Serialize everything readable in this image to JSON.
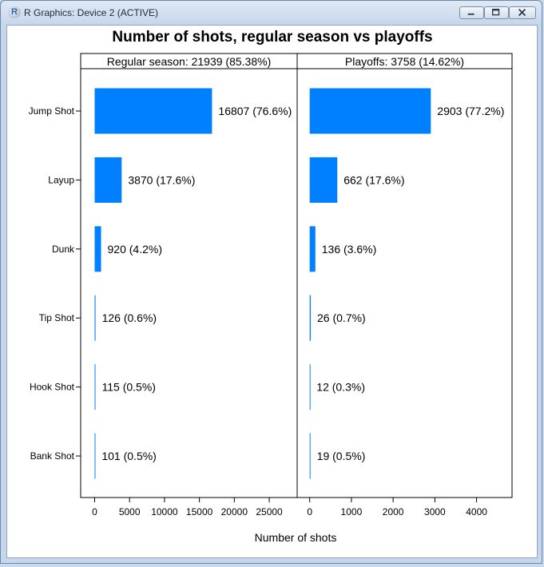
{
  "window": {
    "title": "R Graphics: Device 2 (ACTIVE)",
    "app_icon": "R",
    "controls": [
      "minimize-icon",
      "maximize-icon",
      "close-icon"
    ]
  },
  "colors": {
    "bar": "#0080ff",
    "panel_border": "#000000",
    "background": "#ffffff"
  },
  "chart_data": {
    "type": "bar",
    "orientation": "horizontal",
    "title": "Number of shots, regular season vs playoffs",
    "xlabel": "Number of shots",
    "ylabel": "",
    "categories": [
      "Jump Shot",
      "Layup",
      "Dunk",
      "Tip Shot",
      "Hook Shot",
      "Bank Shot"
    ],
    "panels": [
      {
        "strip": "Regular season: 21939 (85.38%)",
        "values": [
          16807,
          3870,
          920,
          126,
          115,
          101
        ],
        "labels": [
          "16807 (76.6%)",
          "3870 (17.6%)",
          "920 (4.2%)",
          "126 (0.6%)",
          "115 (0.5%)",
          "101 (0.5%)"
        ],
        "xlim": [
          -2000,
          29000
        ],
        "ticks": [
          0,
          5000,
          10000,
          15000,
          20000,
          25000
        ],
        "tick_labels": [
          "0",
          "5000",
          "10000",
          "15000",
          "20000",
          "25000"
        ]
      },
      {
        "strip": "Playoffs: 3758 (14.62%)",
        "values": [
          2903,
          662,
          136,
          26,
          12,
          19
        ],
        "labels": [
          "2903 (77.2%)",
          "662 (17.6%)",
          "136 (3.6%)",
          "26 (0.7%)",
          "12 (0.3%)",
          "19 (0.5%)"
        ],
        "xlim": [
          -300,
          4850
        ],
        "ticks": [
          0,
          1000,
          2000,
          3000,
          4000
        ],
        "tick_labels": [
          "0",
          "1000",
          "2000",
          "3000",
          "4000"
        ]
      }
    ],
    "grid": false,
    "legend": "none"
  }
}
